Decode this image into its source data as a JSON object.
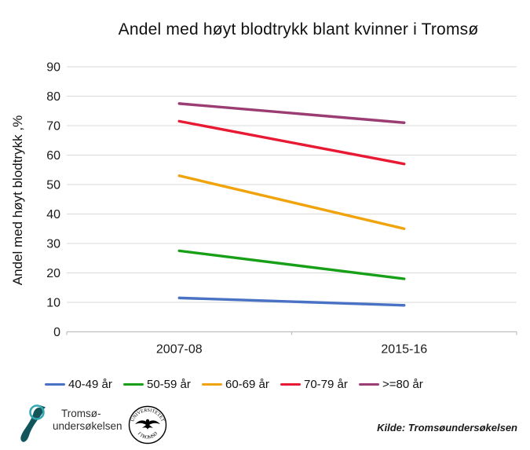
{
  "title": "Andel med høyt blodtrykk blant kvinner i Tromsø",
  "chart_data": {
    "type": "line",
    "x_categories": [
      "2007-08",
      "2015-16"
    ],
    "ylabel": "Andel med høyt blodtrykk ,%",
    "ylim": [
      0,
      90
    ],
    "yticks": [
      0,
      10,
      20,
      30,
      40,
      50,
      60,
      70,
      80,
      90
    ],
    "grid": true,
    "legend_position": "bottom",
    "series": [
      {
        "name": "40-49 år",
        "color": "#4A72C4",
        "values": [
          11.5,
          9
        ]
      },
      {
        "name": "50-59 år",
        "color": "#17A017",
        "values": [
          27.5,
          18
        ]
      },
      {
        "name": "60-69 år",
        "color": "#F0A30A",
        "values": [
          53,
          35
        ]
      },
      {
        "name": "70-79 år",
        "color": "#E81933",
        "values": [
          71.5,
          57
        ]
      },
      {
        "name": ">=80 år",
        "color": "#9B3D73",
        "values": [
          77.5,
          71
        ]
      }
    ],
    "grid_color": "#D9D9D9",
    "axis_color": "#BFBFBF",
    "tick_label_color": "#1a1a1a"
  },
  "footer": {
    "logo": {
      "line1": "Tromsø-",
      "line2": "undersøkelsen",
      "map_color": "#12565C",
      "ring_color": "#35A7B0"
    },
    "seal": {
      "top_text": "UNIVERSITETET",
      "bottom_text": "I TROMSØ"
    },
    "source": "Kilde: Tromsøundersøkelsen"
  }
}
